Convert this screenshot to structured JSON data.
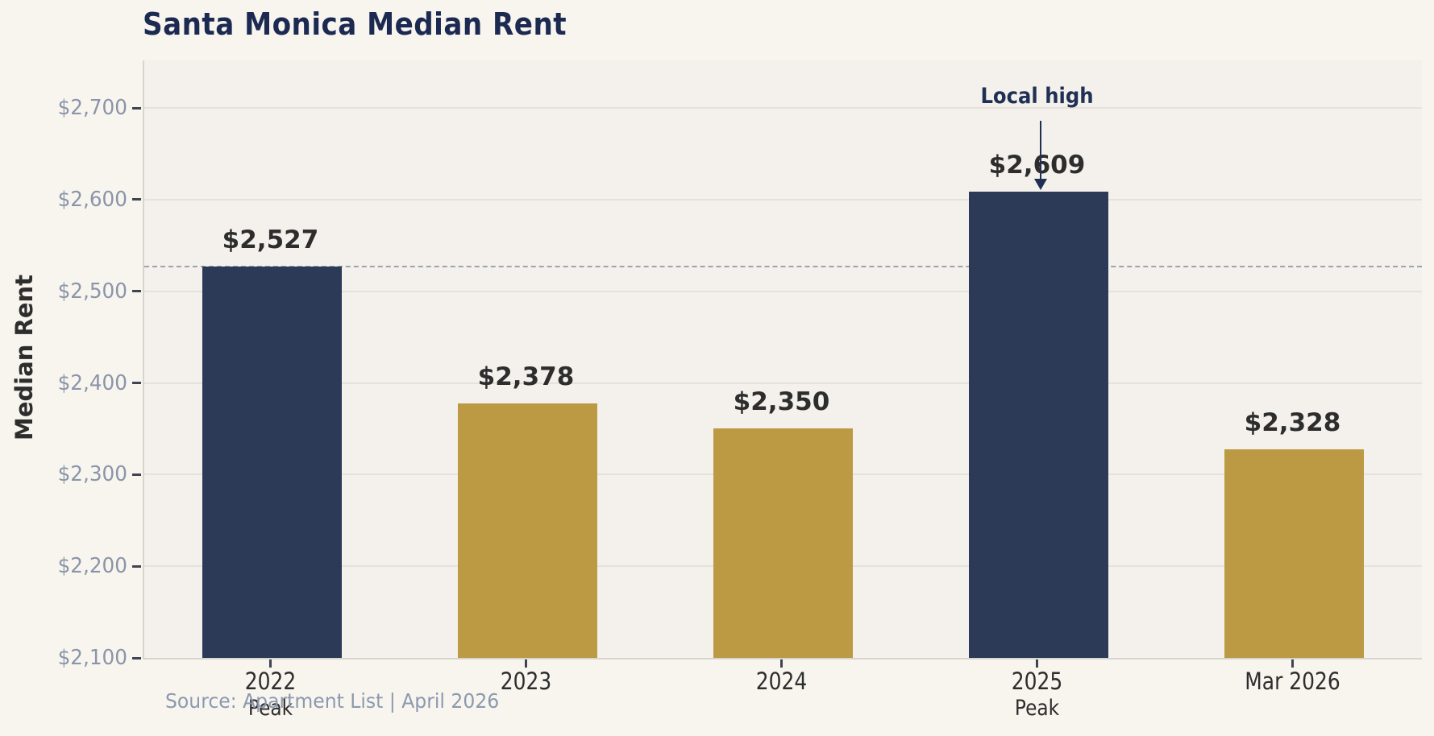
{
  "chart_data": {
    "type": "bar",
    "title": "Santa Monica Median Rent",
    "ylabel": "Median Rent",
    "source": "Source: Apartment List  |  April 2026",
    "categories": [
      "2022",
      "2023",
      "2024",
      "2025",
      "Mar 2026"
    ],
    "sublabels": [
      "Peak",
      "",
      "",
      "Peak",
      ""
    ],
    "values": [
      2527,
      2378,
      2350,
      2609,
      2328
    ],
    "value_labels": [
      "$2,527",
      "$2,378",
      "$2,350",
      "$2,609",
      "$2,328"
    ],
    "bar_colors": [
      "#2C3A58",
      "#BC9A44",
      "#BC9A44",
      "#2C3A58",
      "#BC9A44"
    ],
    "ylim": [
      2100,
      2752
    ],
    "yticks": [
      2100,
      2200,
      2300,
      2400,
      2500,
      2600,
      2700
    ],
    "ytick_labels": [
      "$2,100",
      "$2,200",
      "$2,300",
      "$2,400",
      "$2,500",
      "$2,600",
      "$2,700"
    ],
    "grid": "horizontal",
    "legend": "none",
    "reference_line": {
      "value": 2527,
      "style": "dashed"
    },
    "annotation": {
      "text": "Local high",
      "category": "2025"
    },
    "colors": {
      "background": "#F8F5EF",
      "plot_background": "#F4F1EC",
      "title": "#1C2A52",
      "ytick_label": "#8B95A9",
      "x_label": "#2D2D2D",
      "value_label": "#2D2D2D",
      "gridline": "#E5E2DD",
      "spine": "#D8D5D0",
      "tick_mark": "#3F4450",
      "reference_line": "#99A3B4",
      "annotation": "#203055",
      "source": "#8C99AE"
    }
  }
}
